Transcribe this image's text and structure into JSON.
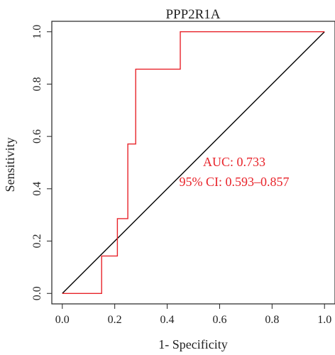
{
  "chart_data": {
    "type": "line",
    "title": "PPP2R1A",
    "xlabel": "1- Specificity",
    "ylabel": "Sensitivity",
    "xlim": [
      -0.04,
      1.04
    ],
    "ylim": [
      -0.04,
      1.04
    ],
    "x_ticks": [
      "0.0",
      "0.2",
      "0.4",
      "0.6",
      "0.8",
      "1.0"
    ],
    "y_ticks": [
      "0.0",
      "0.2",
      "0.4",
      "0.6",
      "0.8",
      "1.0"
    ],
    "grid": false,
    "series": [
      {
        "color": "#e8232a",
        "x": [
          0,
          0.15,
          0.15,
          0.21,
          0.21,
          0.25,
          0.25,
          0.26,
          0.26,
          0.28,
          0.28,
          0.45,
          0.45,
          1.0
        ],
        "y": [
          0,
          0,
          0.143,
          0.143,
          0.286,
          0.286,
          0.571,
          0.571,
          0.571,
          0.571,
          0.857,
          0.857,
          1.0,
          1.0
        ]
      }
    ],
    "reference_line": {
      "color": "#000000",
      "x": [
        0,
        1
      ],
      "y": [
        0,
        1
      ]
    },
    "annotations": {
      "auc": "AUC: 0.733",
      "ci": "95% CI: 0.593–0.857",
      "color": "#e8232a"
    }
  }
}
